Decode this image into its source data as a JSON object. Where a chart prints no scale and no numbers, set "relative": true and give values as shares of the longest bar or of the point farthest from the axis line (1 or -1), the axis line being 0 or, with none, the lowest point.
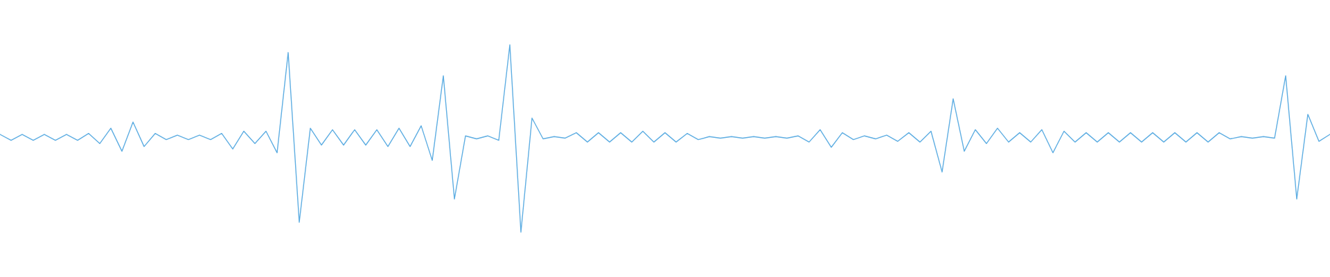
{
  "chart_data": {
    "type": "line",
    "relative": true,
    "categories": [
      null,
      null,
      null,
      null,
      null,
      null,
      null,
      null,
      null,
      null,
      null,
      null,
      null,
      null,
      null,
      null,
      null,
      null,
      null,
      null,
      null,
      null,
      null,
      null,
      null,
      null,
      null,
      null,
      null,
      null,
      null,
      null,
      null,
      null,
      null,
      null,
      null,
      null,
      null,
      null,
      null,
      null,
      null,
      null,
      null,
      null,
      null,
      null,
      null,
      null,
      null,
      null,
      null,
      null,
      null,
      null,
      null,
      null,
      null,
      null,
      null,
      null,
      null,
      null,
      null,
      null,
      null,
      null,
      null,
      null,
      null,
      null,
      null,
      null,
      null,
      null,
      null,
      null,
      null,
      null,
      null,
      null,
      null,
      null,
      null,
      null,
      null,
      null,
      null,
      null,
      null,
      null,
      null,
      null,
      null,
      null,
      null,
      null,
      null,
      null,
      null,
      null,
      null,
      null,
      null,
      null,
      null,
      null,
      null,
      null,
      null,
      null,
      null,
      null,
      null,
      null,
      null,
      null,
      null,
      null,
      null
    ],
    "series": [
      {
        "color": "#5dade2",
        "values": [
          0.522,
          0.49,
          0.522,
          0.49,
          0.522,
          0.49,
          0.522,
          0.49,
          0.527,
          0.473,
          0.555,
          0.432,
          0.588,
          0.457,
          0.527,
          0.494,
          0.518,
          0.494,
          0.518,
          0.494,
          0.527,
          0.444,
          0.539,
          0.473,
          0.539,
          0.424,
          0.959,
          0.053,
          0.555,
          0.465,
          0.547,
          0.465,
          0.547,
          0.465,
          0.547,
          0.457,
          0.555,
          0.457,
          0.568,
          0.383,
          0.835,
          0.177,
          0.514,
          0.498,
          0.514,
          0.49,
          1.0,
          0.0,
          0.609,
          0.498,
          0.51,
          0.502,
          0.531,
          0.481,
          0.531,
          0.481,
          0.531,
          0.481,
          0.539,
          0.481,
          0.531,
          0.481,
          0.527,
          0.494,
          0.51,
          0.502,
          0.51,
          0.502,
          0.51,
          0.502,
          0.51,
          0.502,
          0.514,
          0.481,
          0.547,
          0.453,
          0.531,
          0.494,
          0.514,
          0.498,
          0.518,
          0.485,
          0.531,
          0.481,
          0.539,
          0.321,
          0.712,
          0.432,
          0.547,
          0.473,
          0.555,
          0.481,
          0.531,
          0.481,
          0.547,
          0.424,
          0.539,
          0.481,
          0.531,
          0.481,
          0.531,
          0.481,
          0.531,
          0.481,
          0.531,
          0.481,
          0.531,
          0.481,
          0.531,
          0.481,
          0.531,
          0.498,
          0.51,
          0.502,
          0.51,
          0.502,
          0.835,
          0.177,
          0.629,
          0.485,
          0.522
        ]
      }
    ]
  }
}
